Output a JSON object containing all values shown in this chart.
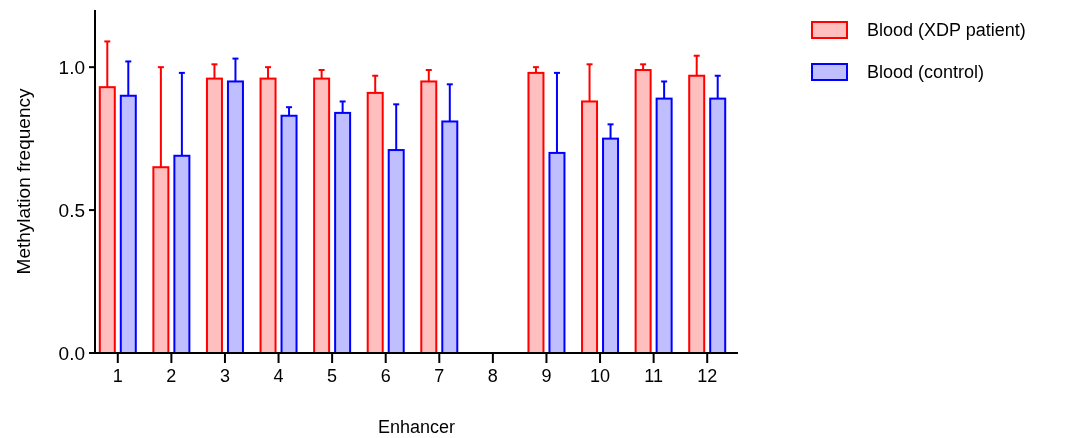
{
  "chart_data": {
    "type": "bar",
    "xlabel": "Enhancer",
    "ylabel": "Methylation frequency",
    "categories": [
      "1",
      "2",
      "3",
      "4",
      "5",
      "6",
      "7",
      "8",
      "9",
      "10",
      "11",
      "12"
    ],
    "series": [
      {
        "name": "Blood (XDP patient)",
        "color": "#ff0000",
        "values": [
          0.93,
          0.65,
          0.96,
          0.96,
          0.96,
          0.91,
          0.95,
          null,
          0.98,
          0.88,
          0.99,
          0.97
        ],
        "errors": [
          [
            0.93,
            1.09
          ],
          [
            0.65,
            1.0
          ],
          [
            0.96,
            1.01
          ],
          [
            0.96,
            1.0
          ],
          [
            0.96,
            0.99
          ],
          [
            0.91,
            0.97
          ],
          [
            0.95,
            0.99
          ],
          null,
          [
            0.98,
            1.0
          ],
          [
            0.88,
            1.01
          ],
          [
            0.99,
            1.01
          ],
          [
            0.97,
            1.04
          ]
        ]
      },
      {
        "name": "Blood (control)",
        "color": "#0000ff",
        "values": [
          0.9,
          0.69,
          0.95,
          0.83,
          0.84,
          0.71,
          0.81,
          null,
          0.7,
          0.75,
          0.89,
          0.89
        ],
        "errors": [
          [
            0.9,
            1.02
          ],
          [
            0.69,
            0.98
          ],
          [
            0.95,
            1.03
          ],
          [
            0.83,
            0.86
          ],
          [
            0.84,
            0.88
          ],
          [
            0.71,
            0.87
          ],
          [
            0.81,
            0.94
          ],
          null,
          [
            0.7,
            0.98
          ],
          [
            0.75,
            0.8
          ],
          [
            0.89,
            0.95
          ],
          [
            0.89,
            0.97
          ]
        ]
      }
    ],
    "ylim": [
      0,
      1.2
    ],
    "yticks": [
      {
        "value": 0,
        "label": "0.0"
      },
      {
        "value": 0.5,
        "label": "0.5"
      },
      {
        "value": 1,
        "label": "1.0"
      }
    ],
    "grid": false,
    "legend": "top right"
  }
}
